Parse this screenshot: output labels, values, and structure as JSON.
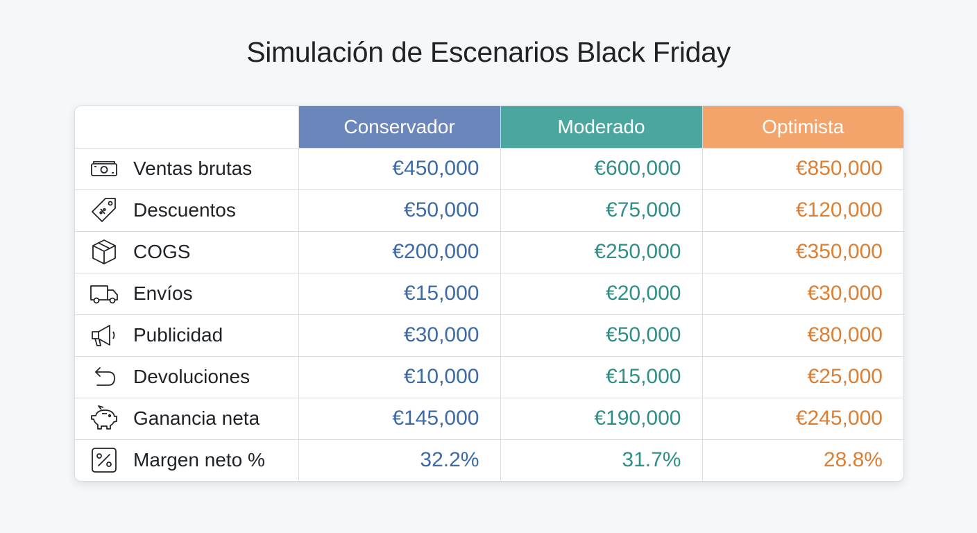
{
  "title": "Simulación de Escenarios Black Friday",
  "chart_data": {
    "type": "table",
    "title": "Simulación de Escenarios Black Friday",
    "columns": [
      {
        "name": "Conservador",
        "color": "#6a86ba",
        "text_color": "#3b6aa6"
      },
      {
        "name": "Moderado",
        "color": "#4ca6a0",
        "text_color": "#2f8f87"
      },
      {
        "name": "Optimista",
        "color": "#f2a46b",
        "text_color": "#dc7f34"
      }
    ],
    "rows": [
      {
        "label": "Ventas brutas",
        "icon": "money-icon",
        "values": [
          "€450,000",
          "€600,000",
          "€850,000"
        ]
      },
      {
        "label": "Descuentos",
        "icon": "tag-icon",
        "values": [
          "€50,000",
          "€75,000",
          "€120,000"
        ]
      },
      {
        "label": "COGS",
        "icon": "box-icon",
        "values": [
          "€200,000",
          "€250,000",
          "€350,000"
        ]
      },
      {
        "label": "Envíos",
        "icon": "truck-icon",
        "values": [
          "€15,000",
          "€20,000",
          "€30,000"
        ]
      },
      {
        "label": "Publicidad",
        "icon": "megaphone-icon",
        "values": [
          "€30,000",
          "€50,000",
          "€80,000"
        ]
      },
      {
        "label": "Devoluciones",
        "icon": "return-arrow-icon",
        "values": [
          "€10,000",
          "€15,000",
          "€25,000"
        ]
      },
      {
        "label": "Ganancia neta",
        "icon": "piggy-bank-icon",
        "values": [
          "€145,000",
          "€190,000",
          "€245,000"
        ]
      },
      {
        "label": "Margen neto %",
        "icon": "percent-icon",
        "values": [
          "32.2%",
          "31.7%",
          "28.8%"
        ]
      }
    ]
  }
}
